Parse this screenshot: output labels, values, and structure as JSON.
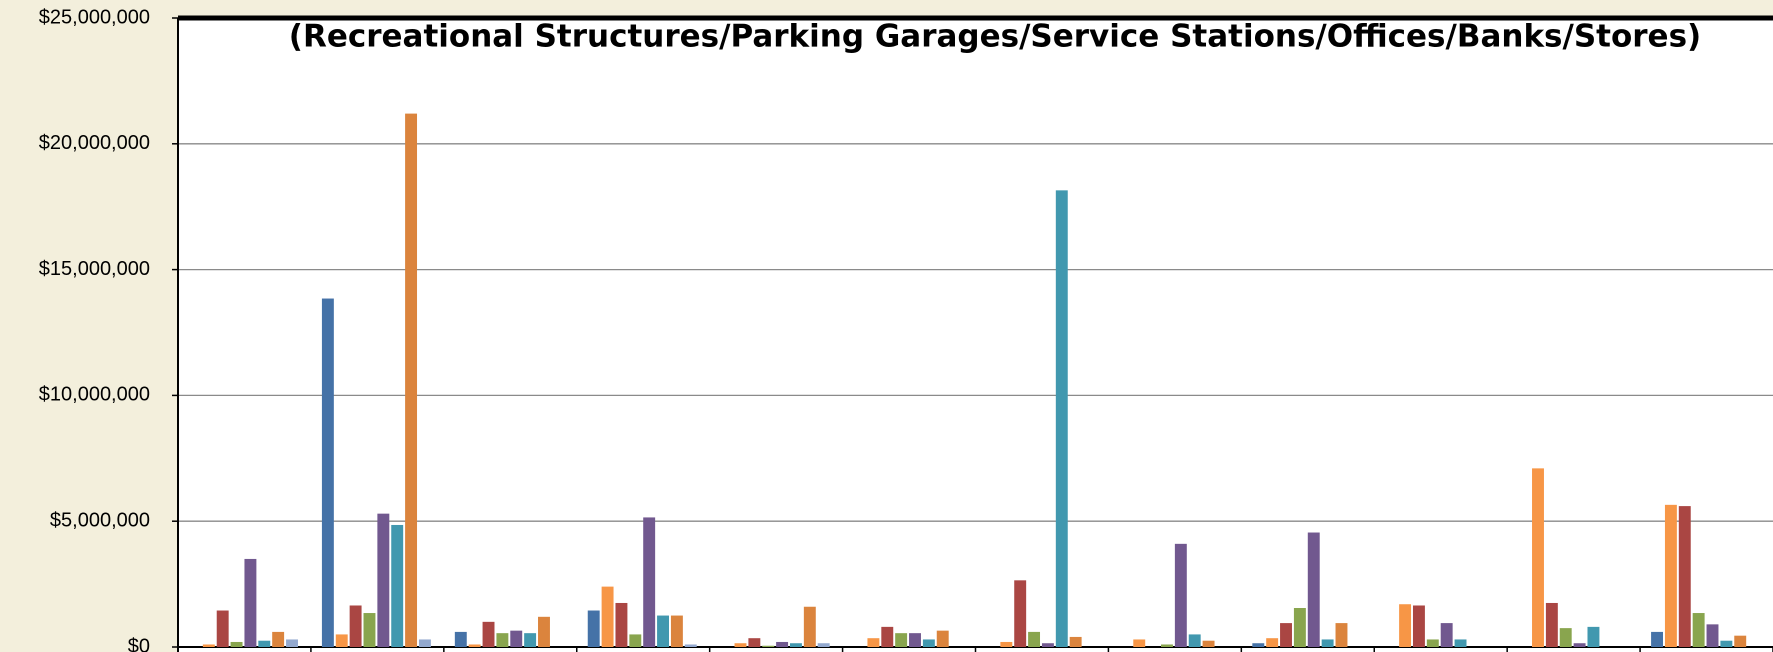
{
  "chart_data": {
    "type": "bar",
    "title": "(Recreational Structures/Parking Garages/Service Stations/Offices/Banks/Stores)",
    "ylim": [
      0,
      25000000
    ],
    "yticks": [
      {
        "value": 0,
        "label": "$0"
      },
      {
        "value": 5000000,
        "label": "$5,000,000"
      },
      {
        "value": 10000000,
        "label": "$10,000,000"
      },
      {
        "value": 15000000,
        "label": "$15,000,000"
      },
      {
        "value": 20000000,
        "label": "$20,000,000"
      },
      {
        "value": 25000000,
        "label": "$25,000,000"
      }
    ],
    "grid": true,
    "series": [
      {
        "color": "#4572a7",
        "values": [
          0,
          13850000,
          600000,
          1450000,
          0,
          0,
          0,
          0,
          150000,
          0,
          0,
          600000
        ]
      },
      {
        "color": "#f79646",
        "values": [
          100000,
          500000,
          100000,
          2400000,
          150000,
          350000,
          200000,
          300000,
          350000,
          1700000,
          7100000,
          5650000
        ]
      },
      {
        "color": "#aa4643",
        "values": [
          1450000,
          1650000,
          1000000,
          1750000,
          350000,
          800000,
          2650000,
          0,
          950000,
          1650000,
          1750000,
          5600000
        ]
      },
      {
        "color": "#89a54e",
        "values": [
          200000,
          1350000,
          550000,
          500000,
          50000,
          550000,
          600000,
          100000,
          1550000,
          300000,
          750000,
          1350000
        ]
      },
      {
        "color": "#71588f",
        "values": [
          3500000,
          5300000,
          650000,
          5150000,
          200000,
          550000,
          150000,
          4100000,
          4550000,
          950000,
          150000,
          900000
        ]
      },
      {
        "color": "#4198af",
        "values": [
          250000,
          4850000,
          550000,
          1250000,
          150000,
          300000,
          18150000,
          500000,
          300000,
          300000,
          800000,
          250000
        ]
      },
      {
        "color": "#db843d",
        "values": [
          600000,
          21200000,
          1200000,
          1250000,
          1600000,
          650000,
          400000,
          250000,
          950000,
          0,
          0,
          450000
        ]
      },
      {
        "color": "#93a9cf",
        "values": [
          300000,
          300000,
          0,
          100000,
          150000,
          0,
          0,
          0,
          0,
          0,
          0,
          0
        ]
      }
    ]
  }
}
